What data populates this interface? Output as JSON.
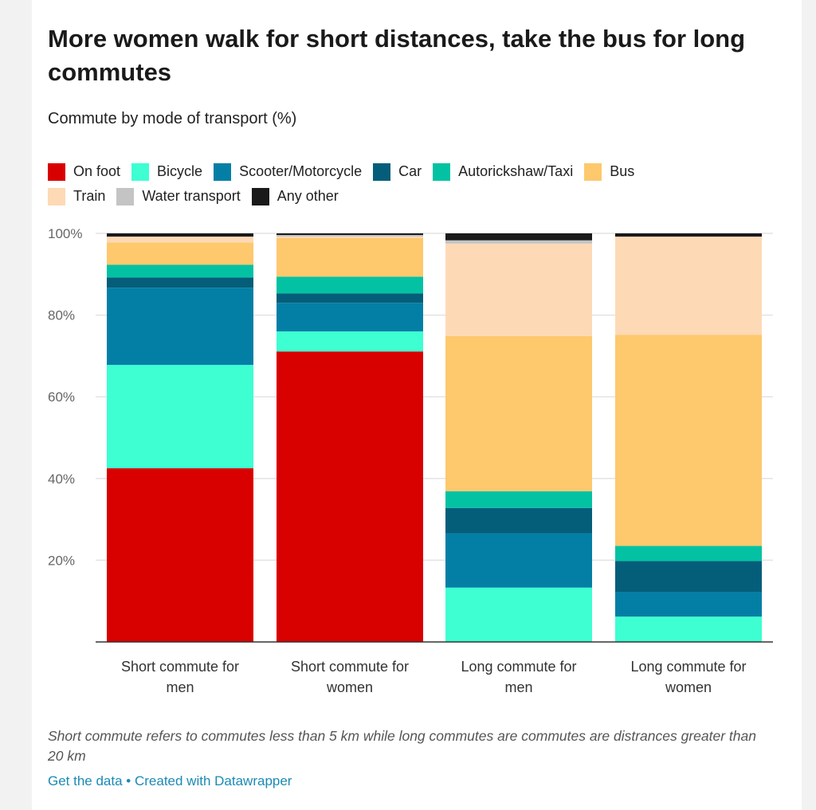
{
  "chart_data": {
    "type": "bar",
    "stacked": true,
    "title": "More women walk for short distances, take the bus for long commutes",
    "subtitle": "Commute by mode of transport (%)",
    "categories": [
      [
        "Short commute for",
        "men"
      ],
      [
        "Short commute for",
        "women"
      ],
      [
        "Long commute for",
        "men"
      ],
      [
        "Long commute for",
        "women"
      ]
    ],
    "series": [
      {
        "name": "On foot",
        "color": "#d90000",
        "values": [
          42.5,
          71.1,
          0,
          0
        ]
      },
      {
        "name": "Bicycle",
        "color": "#3dffd2",
        "values": [
          25.3,
          4.9,
          13.3,
          6.2
        ]
      },
      {
        "name": "Scooter/Motorcycle",
        "color": "#037fa6",
        "values": [
          18.9,
          7.0,
          13.3,
          6.0
        ]
      },
      {
        "name": "Car",
        "color": "#045e7a",
        "values": [
          2.5,
          2.3,
          6.2,
          7.6
        ]
      },
      {
        "name": "Autorickshaw/Taxi",
        "color": "#03c2a3",
        "values": [
          3.1,
          4.1,
          4.1,
          3.7
        ]
      },
      {
        "name": "Bus",
        "color": "#fec86d",
        "values": [
          5.5,
          9.5,
          38.0,
          51.7
        ]
      },
      {
        "name": "Train",
        "color": "#fed9b6",
        "values": [
          1.4,
          0.3,
          22.6,
          24.0
        ]
      },
      {
        "name": "Water transport",
        "color": "#c4c4c4",
        "values": [
          0,
          0.4,
          0.8,
          0
        ]
      },
      {
        "name": "Any other",
        "color": "#1a1a1a",
        "values": [
          0.8,
          0.4,
          1.7,
          0.8
        ]
      }
    ],
    "ylim": [
      0,
      100
    ],
    "yticks": [
      {
        "v": 20,
        "label": "20%"
      },
      {
        "v": 40,
        "label": "40%"
      },
      {
        "v": 60,
        "label": "60%"
      },
      {
        "v": 80,
        "label": "80%"
      },
      {
        "v": 100,
        "label": "100%"
      }
    ],
    "grid": true,
    "legend_position": "top"
  },
  "note": "Short commute refers to commutes less than 5 km while long commutes are commutes are distrances greater than 20 km",
  "footer": {
    "get_data": "Get the data",
    "separator": " • ",
    "created_with": "Created with Datawrapper"
  }
}
